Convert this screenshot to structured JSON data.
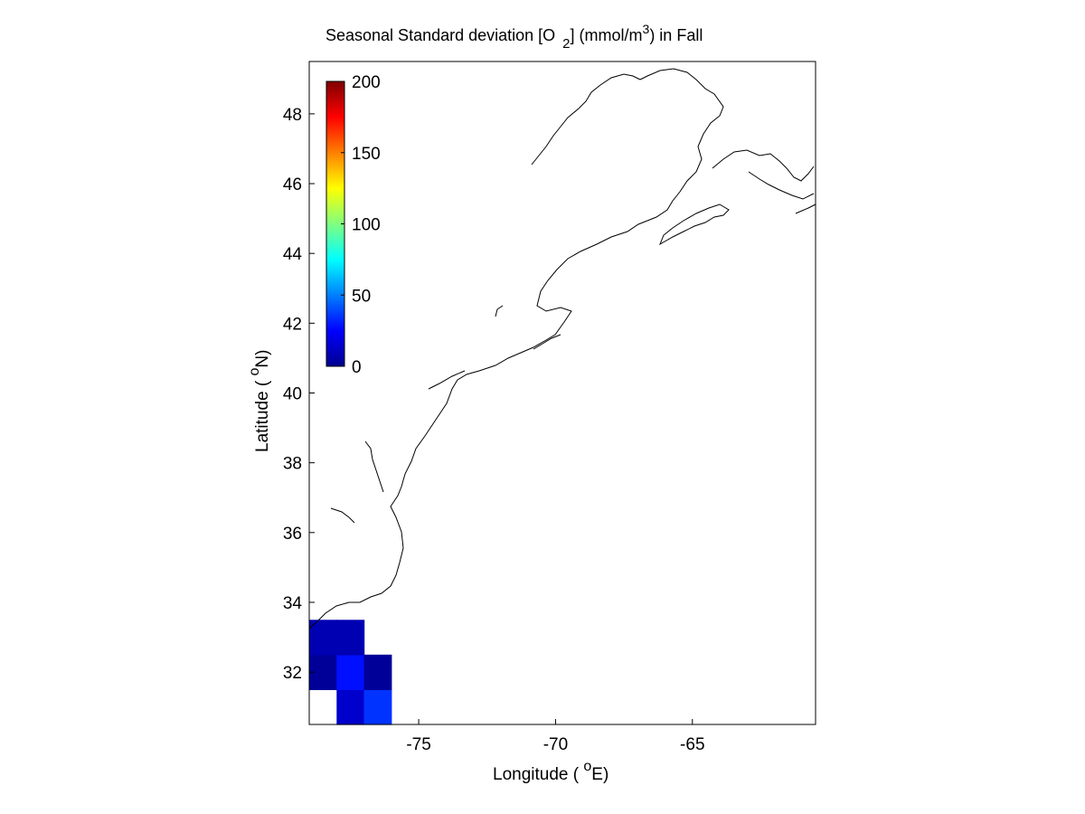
{
  "chart_data": {
    "type": "heatmap",
    "title": {
      "prefix": "Seasonal Standard deviation [O",
      "sub": "2",
      "middle": "] (mmol/m",
      "sup": "3",
      "suffix": ") in  Fall"
    },
    "xlabel": {
      "prefix": "Longitude ( ",
      "sup": "o",
      "suffix": "E)"
    },
    "ylabel": {
      "prefix": "Latitude ( ",
      "sup": "o",
      "suffix": "N)"
    },
    "xlim": [
      -79,
      -60.5
    ],
    "ylim": [
      30.5,
      49.5
    ],
    "x_ticks": [
      -75,
      -70,
      -65
    ],
    "y_ticks": [
      32,
      34,
      36,
      38,
      40,
      42,
      44,
      46,
      48
    ],
    "grid": false,
    "colormap": "jet",
    "colorbar": {
      "range": [
        0,
        200
      ],
      "ticks": [
        0,
        50,
        100,
        150,
        200
      ],
      "placement": "top-left-inside"
    },
    "cell_size_deg": 1,
    "lon_start": -79,
    "lat_start": 30.5,
    "values": [
      [
        null,
        15,
        35,
        null,
        null,
        null,
        null,
        null,
        null,
        null,
        null,
        null,
        null,
        null,
        null,
        null,
        null,
        null,
        null
      ],
      [
        5,
        28,
        5,
        null,
        null,
        null,
        null,
        null,
        null,
        null,
        null,
        null,
        null,
        null,
        null,
        null,
        null,
        null,
        null
      ],
      [
        10,
        10,
        null,
        null,
        null,
        null,
        null,
        null,
        null,
        null,
        null,
        null,
        null,
        null,
        null,
        null,
        null,
        null,
        null
      ],
      [
        null,
        null,
        null,
        null,
        null,
        null,
        null,
        null,
        null,
        null,
        null,
        null,
        null,
        null,
        null,
        null,
        null,
        null,
        null
      ],
      [
        null,
        null,
        null,
        null,
        null,
        null,
        null,
        null,
        null,
        null,
        null,
        null,
        null,
        null,
        null,
        null,
        null,
        null,
        null
      ],
      [
        null,
        null,
        null,
        null,
        null,
        null,
        null,
        null,
        null,
        null,
        null,
        null,
        null,
        null,
        null,
        null,
        null,
        null,
        null
      ],
      [
        null,
        null,
        null,
        null,
        null,
        null,
        null,
        null,
        null,
        null,
        null,
        null,
        null,
        null,
        null,
        null,
        null,
        null,
        null
      ],
      [
        null,
        null,
        null,
        null,
        null,
        null,
        null,
        null,
        null,
        null,
        null,
        null,
        null,
        null,
        null,
        null,
        null,
        null,
        null
      ],
      [
        null,
        null,
        null,
        null,
        null,
        null,
        null,
        null,
        null,
        null,
        null,
        null,
        null,
        null,
        null,
        null,
        null,
        null,
        null
      ],
      [
        null,
        null,
        null,
        null,
        null,
        null,
        null,
        null,
        null,
        null,
        null,
        null,
        null,
        null,
        null,
        null,
        null,
        null,
        null
      ],
      [
        null,
        null,
        null,
        null,
        null,
        null,
        null,
        null,
        null,
        null,
        null,
        null,
        null,
        null,
        null,
        null,
        null,
        null,
        null
      ],
      [
        null,
        null,
        null,
        null,
        null,
        null,
        null,
        null,
        null,
        null,
        null,
        null,
        null,
        null,
        null,
        null,
        null,
        null,
        null
      ],
      [
        null,
        null,
        null,
        null,
        null,
        null,
        null,
        null,
        null,
        null,
        null,
        null,
        null,
        null,
        null,
        null,
        null,
        null,
        null
      ],
      [
        null,
        null,
        null,
        null,
        null,
        null,
        null,
        null,
        null,
        null,
        null,
        null,
        null,
        null,
        null,
        null,
        null,
        null,
        null
      ],
      [
        null,
        null,
        null,
        null,
        null,
        null,
        null,
        null,
        null,
        null,
        null,
        null,
        null,
        null,
        null,
        null,
        null,
        null,
        null
      ],
      [
        null,
        null,
        null,
        null,
        null,
        null,
        null,
        null,
        null,
        null,
        null,
        null,
        null,
        null,
        null,
        null,
        null,
        null,
        null
      ],
      [
        null,
        null,
        null,
        null,
        null,
        null,
        null,
        null,
        null,
        null,
        null,
        null,
        null,
        null,
        null,
        null,
        null,
        null,
        null
      ],
      [
        null,
        null,
        null,
        null,
        null,
        null,
        null,
        null,
        null,
        null,
        null,
        null,
        null,
        null,
        null,
        null,
        null,
        null,
        null
      ],
      [
        null,
        null,
        null,
        null,
        null,
        null,
        null,
        null,
        null,
        null,
        null,
        null,
        null,
        null,
        null,
        null,
        null,
        null,
        null
      ]
    ]
  }
}
